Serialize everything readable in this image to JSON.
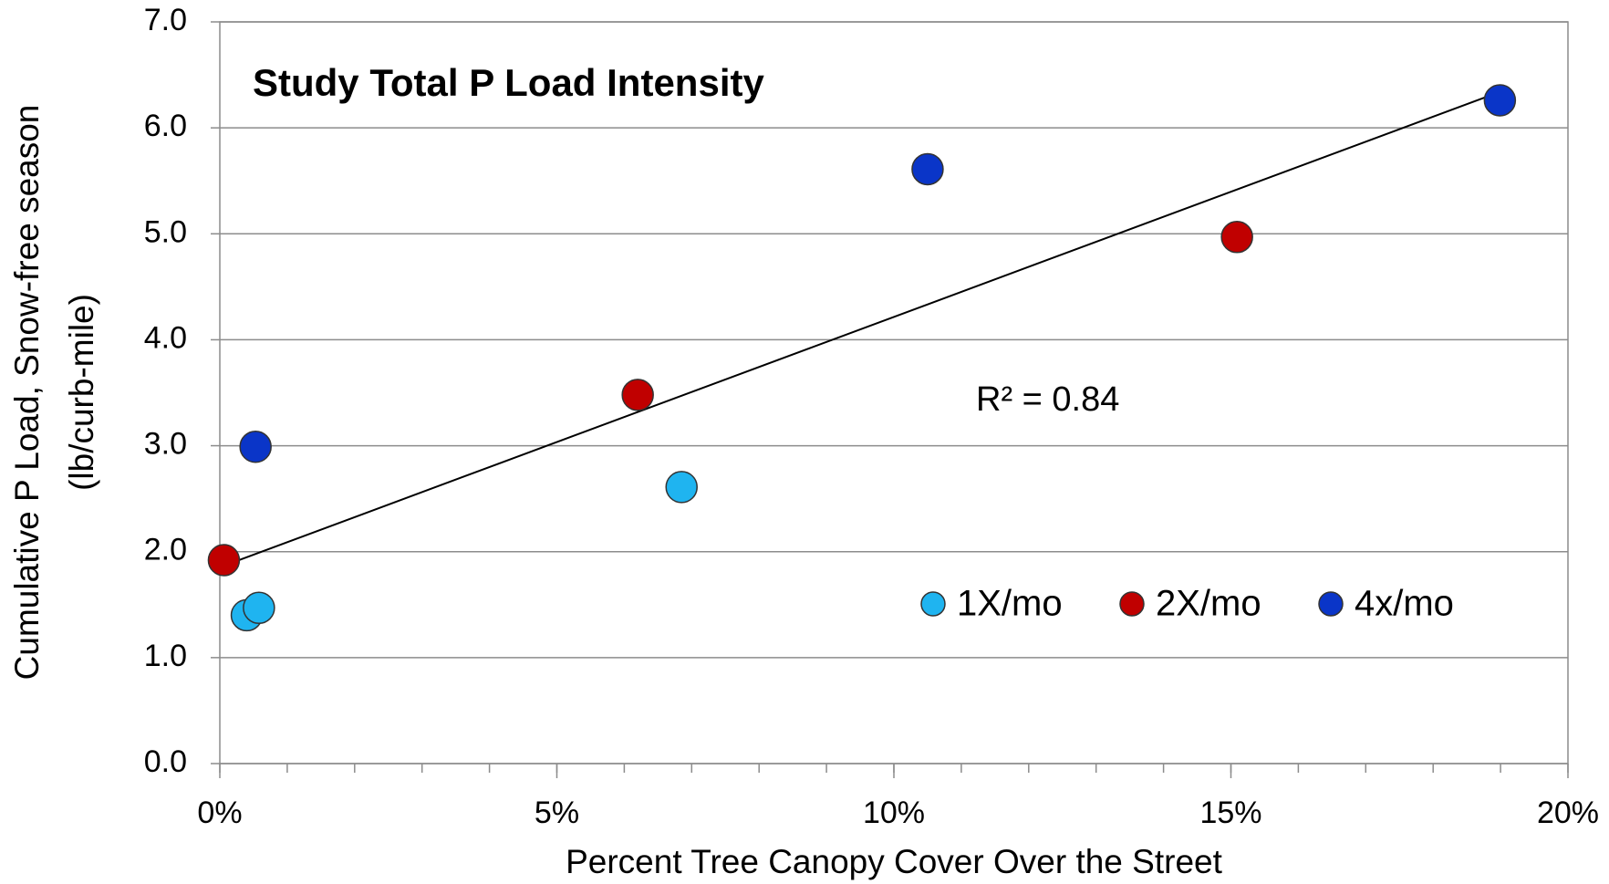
{
  "chart_data": {
    "type": "scatter",
    "title": "Study Total P Load Intensity",
    "x_label": "Percent Tree Canopy Cover Over the Street",
    "y_label": [
      "Cumulative P Load, Snow-free season",
      "(lb/curb-mile)"
    ],
    "annotation": "R² = 0.84",
    "xlim": [
      0,
      20
    ],
    "ylim": [
      0,
      7
    ],
    "xticks": [
      {
        "value": 0,
        "label": "0%"
      },
      {
        "value": 5,
        "label": "5%"
      },
      {
        "value": 10,
        "label": "10%"
      },
      {
        "value": 15,
        "label": "15%"
      },
      {
        "value": 20,
        "label": "20%"
      }
    ],
    "x_minor_ticks": [
      0,
      1,
      2,
      3,
      4,
      5,
      6,
      7,
      8,
      9,
      10,
      11,
      12,
      13,
      14,
      15,
      16,
      17,
      18,
      19,
      20
    ],
    "yticks": [
      {
        "value": 0,
        "label": "0.0"
      },
      {
        "value": 1,
        "label": "1.0"
      },
      {
        "value": 2,
        "label": "2.0"
      },
      {
        "value": 3,
        "label": "3.0"
      },
      {
        "value": 4,
        "label": "4.0"
      },
      {
        "value": 5,
        "label": "5.0"
      },
      {
        "value": 6,
        "label": "6.0"
      },
      {
        "value": 7,
        "label": "7.0"
      }
    ],
    "grid": true,
    "legend": "lower-right",
    "series": [
      {
        "name": "1X/mo",
        "color": "#1fb4f0",
        "x": [
          0.4,
          0.58,
          6.85
        ],
        "values": [
          1.4,
          1.47,
          2.61
        ]
      },
      {
        "name": "2X/mo",
        "color": "#c00000",
        "x": [
          0.06,
          6.2,
          15.09
        ],
        "values": [
          1.92,
          3.48,
          4.97
        ]
      },
      {
        "name": "4x/mo",
        "color": "#0a35c8",
        "x": [
          0.53,
          10.5,
          18.99
        ],
        "values": [
          2.99,
          5.61,
          6.26
        ]
      }
    ],
    "trendline": {
      "color": "#000000",
      "x": [
        0.07,
        18.95
      ],
      "values": [
        1.87,
        6.33
      ]
    }
  }
}
